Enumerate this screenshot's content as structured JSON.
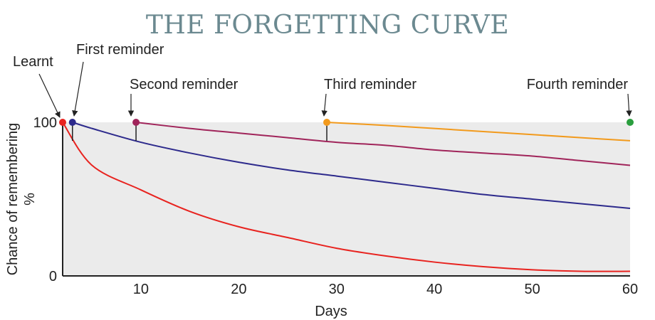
{
  "chart_data": {
    "type": "line",
    "title": "THE FORGETTING CURVE",
    "xlabel": "Days",
    "ylabel": "Chance of remembering",
    "ylabel_unit": "%",
    "xlim": [
      2,
      60
    ],
    "ylim": [
      0,
      100
    ],
    "x_ticks": [
      10,
      20,
      30,
      40,
      50,
      60
    ],
    "y_ticks": [
      0,
      100
    ],
    "grid": false,
    "plot_background": "#ebebeb",
    "series": [
      {
        "color": "#e8231f",
        "x": [
          2,
          5,
          10,
          15,
          20,
          25,
          30,
          35,
          40,
          45,
          50,
          55,
          60
        ],
        "y": [
          100,
          72,
          56,
          42,
          32,
          25,
          18,
          13,
          9,
          6,
          4,
          3,
          3
        ]
      },
      {
        "color": "#2d2a8c",
        "x": [
          3,
          5,
          10,
          15,
          20,
          25,
          30,
          35,
          40,
          45,
          50,
          55,
          60
        ],
        "y": [
          100,
          96,
          87,
          80,
          74,
          69,
          65,
          61,
          57,
          53,
          50,
          47,
          44
        ]
      },
      {
        "color": "#a0245a",
        "x": [
          9.5,
          15,
          20,
          25,
          30,
          35,
          40,
          45,
          50,
          55,
          60
        ],
        "y": [
          100,
          96,
          93,
          90,
          87,
          85,
          82,
          80,
          78,
          75,
          72
        ]
      },
      {
        "color": "#f29a1c",
        "x": [
          29,
          35,
          40,
          45,
          50,
          55,
          60
        ],
        "y": [
          100,
          98,
          96,
          94,
          92,
          90,
          88
        ]
      }
    ],
    "annotations": [
      {
        "label": "Learnt",
        "x": 2,
        "y": 100,
        "color": "#e8231f"
      },
      {
        "label": "First reminder",
        "x": 3,
        "y": 100,
        "color": "#2d2a8c"
      },
      {
        "label": "Second reminder",
        "x": 9.5,
        "y": 100,
        "color": "#a0245a"
      },
      {
        "label": "Third reminder",
        "x": 29,
        "y": 100,
        "color": "#f29a1c"
      },
      {
        "label": "Fourth reminder",
        "x": 60,
        "y": 100,
        "color": "#2a9e3e"
      }
    ]
  }
}
